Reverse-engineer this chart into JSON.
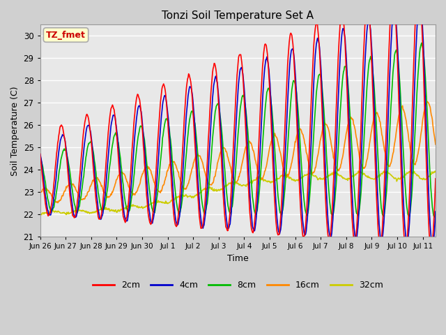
{
  "title": "Tonzi Soil Temperature Set A",
  "xlabel": "Time",
  "ylabel": "Soil Temperature (C)",
  "ylim": [
    21.0,
    30.5
  ],
  "yticks": [
    21.0,
    22.0,
    23.0,
    24.0,
    25.0,
    26.0,
    27.0,
    28.0,
    29.0,
    30.0
  ],
  "annotation_text": "TZ_fmet",
  "annotation_box_color": "#ffffcc",
  "annotation_box_edge": "#aaaaaa",
  "colors": {
    "2cm": "#ff0000",
    "4cm": "#0000cc",
    "8cm": "#00bb00",
    "16cm": "#ff8800",
    "32cm": "#cccc00"
  },
  "line_width": 1.2,
  "fig_facecolor": "#d0d0d0",
  "ax_facecolor": "#e8e8e8",
  "x_tick_labels": [
    "Jun 26",
    "Jun 27",
    "Jun 28",
    "Jun 29",
    "Jun 30",
    "Jul 1",
    "Jul 2",
    "Jul 3",
    "Jul 4",
    "Jul 5",
    "Jul 6",
    "Jul 7",
    "Jul 8",
    "Jul 9",
    "Jul 10",
    "Jul 11"
  ],
  "n_points_per_day": 48,
  "total_days": 15.5
}
